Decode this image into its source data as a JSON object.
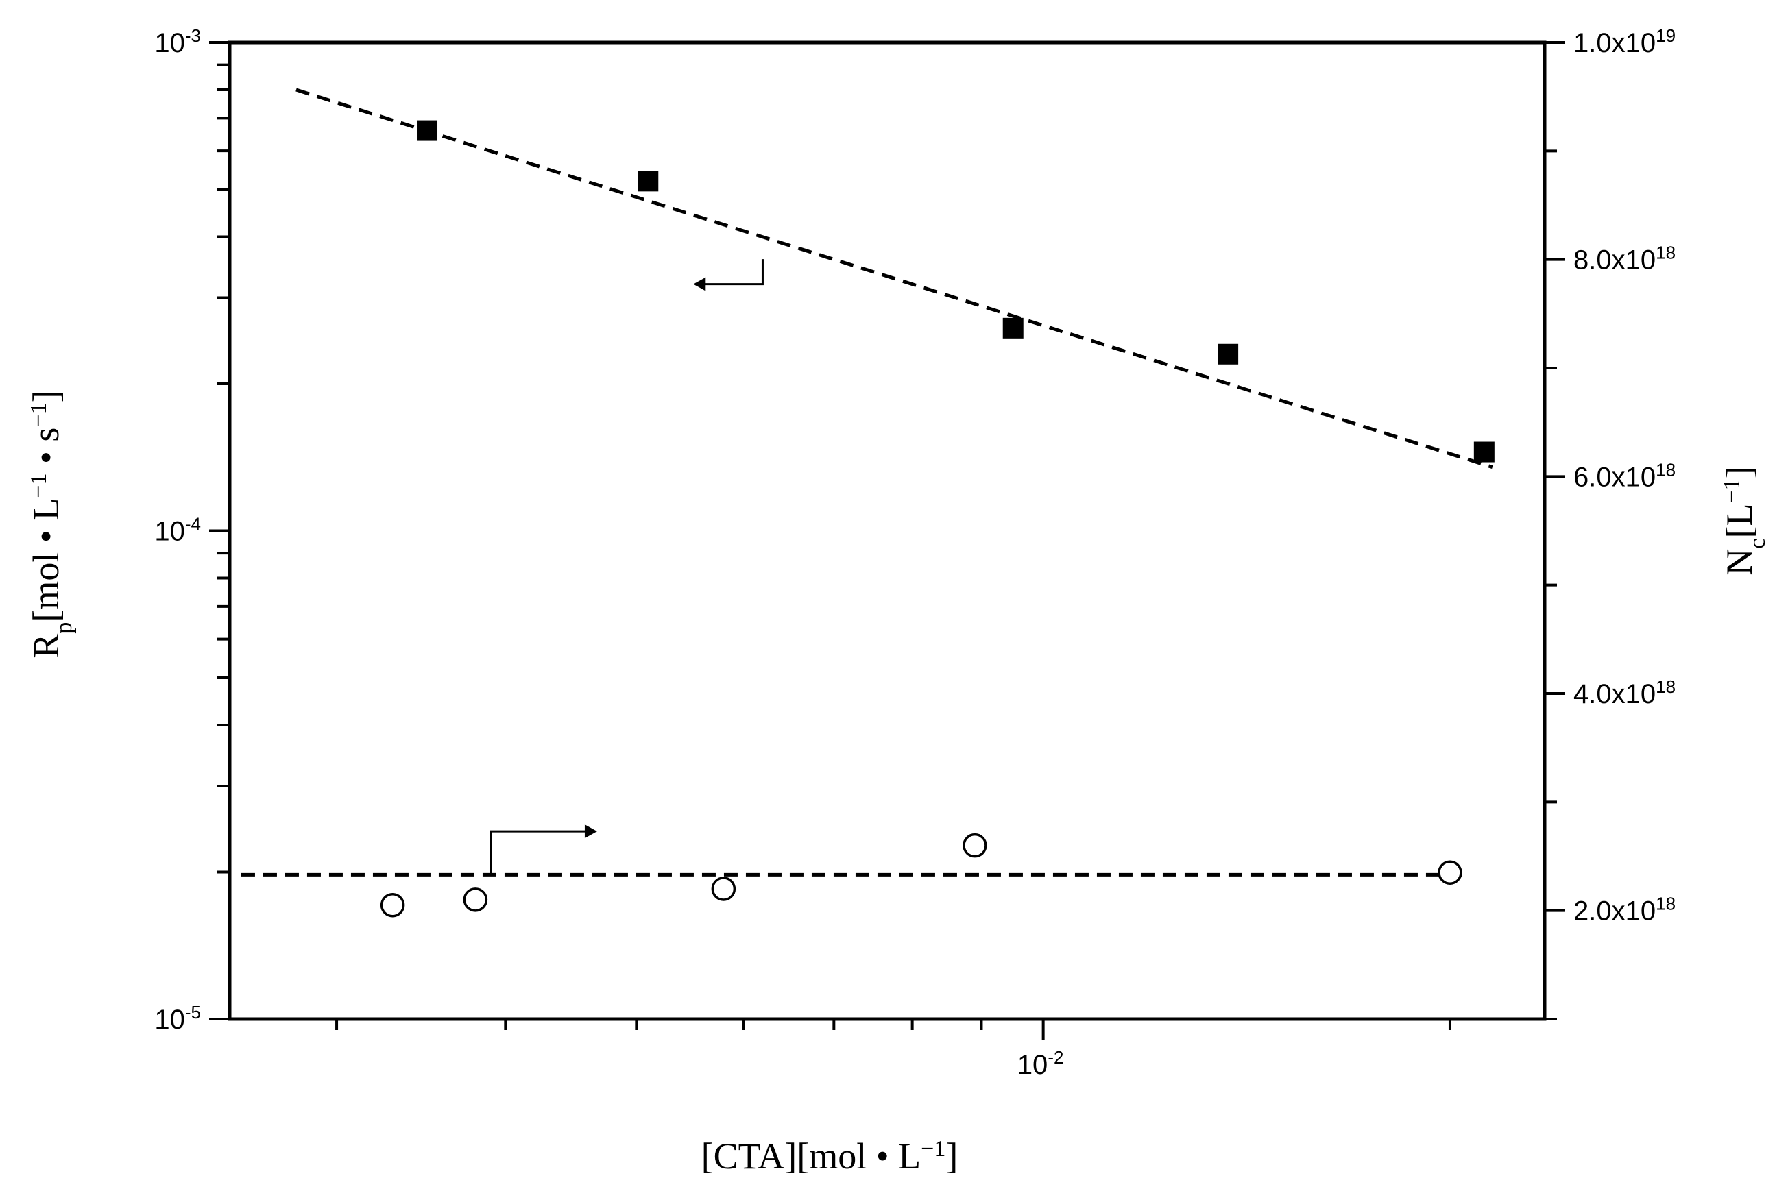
{
  "chart_data": {
    "type": "scatter",
    "x_scale": "log",
    "xlim": [
      0.0025,
      0.0235
    ],
    "x_ticks": [
      {
        "value": 0.01,
        "base": "10",
        "exp": "-2"
      }
    ],
    "y_left": {
      "scale": "log",
      "lim": [
        1e-05,
        0.001
      ],
      "ticks": [
        {
          "value": 0.001,
          "base": "10",
          "exp": "-3"
        },
        {
          "value": 0.0001,
          "base": "10",
          "exp": "-4"
        },
        {
          "value": 1e-05,
          "base": "10",
          "exp": "-5"
        }
      ]
    },
    "y_right": {
      "scale": "linear",
      "lim": [
        1e+18,
        1e+19
      ],
      "ticks": [
        {
          "value": 2e+18,
          "base": "2.0x10",
          "exp": "18"
        },
        {
          "value": 4e+18,
          "base": "4.0x10",
          "exp": "18"
        },
        {
          "value": 6e+18,
          "base": "6.0x10",
          "exp": "18"
        },
        {
          "value": 8e+18,
          "base": "8.0x10",
          "exp": "18"
        },
        {
          "value": 1e+19,
          "base": "1.0x10",
          "exp": "19"
        }
      ]
    },
    "xlabel": {
      "parts": [
        {
          "t": "[CTA][mol • L"
        },
        {
          "t": "−1",
          "sup": true
        },
        {
          "t": "]"
        }
      ]
    },
    "ylabel_left": {
      "parts": [
        {
          "t": "R"
        },
        {
          "t": "p",
          "sub": true
        },
        {
          "t": "[mol • L"
        },
        {
          "t": "−1",
          "sup": true
        },
        {
          "t": " • s"
        },
        {
          "t": "−1",
          "sup": true
        },
        {
          "t": "]"
        }
      ]
    },
    "ylabel_right": {
      "parts": [
        {
          "t": "N"
        },
        {
          "t": "c",
          "sub": true
        },
        {
          "t": "[L"
        },
        {
          "t": "−1",
          "sup": true
        },
        {
          "t": "]"
        }
      ]
    },
    "series": [
      {
        "marker": "filled-square",
        "axis": "left",
        "x": [
          0.0035,
          0.0051,
          0.0095,
          0.0137,
          0.0212
        ],
        "y": [
          0.00066,
          0.00052,
          0.00026,
          0.00023,
          0.000145
        ]
      },
      {
        "marker": "open-circle",
        "axis": "right",
        "x": [
          0.0033,
          0.0038,
          0.0058,
          0.0089,
          0.02
        ],
        "y": [
          2.05e+18,
          2.1e+18,
          2.2e+18,
          2.6e+18,
          2.35e+18
        ]
      }
    ],
    "fits": [
      {
        "style": "dashed",
        "axis": "left",
        "x": [
          0.0028,
          0.0215
        ],
        "y": [
          0.0008,
          0.000135
        ]
      },
      {
        "style": "dashed",
        "axis": "right",
        "x": [
          0.00255,
          0.0205
        ],
        "y": [
          2.33e+18,
          2.33e+18
        ]
      }
    ],
    "annotations": [
      {
        "type": "arrow",
        "points_to": "left-axis",
        "near_series": 0
      },
      {
        "type": "arrow",
        "points_to": "right-axis",
        "near_series": 1
      }
    ],
    "grid": false,
    "legend": "none"
  }
}
